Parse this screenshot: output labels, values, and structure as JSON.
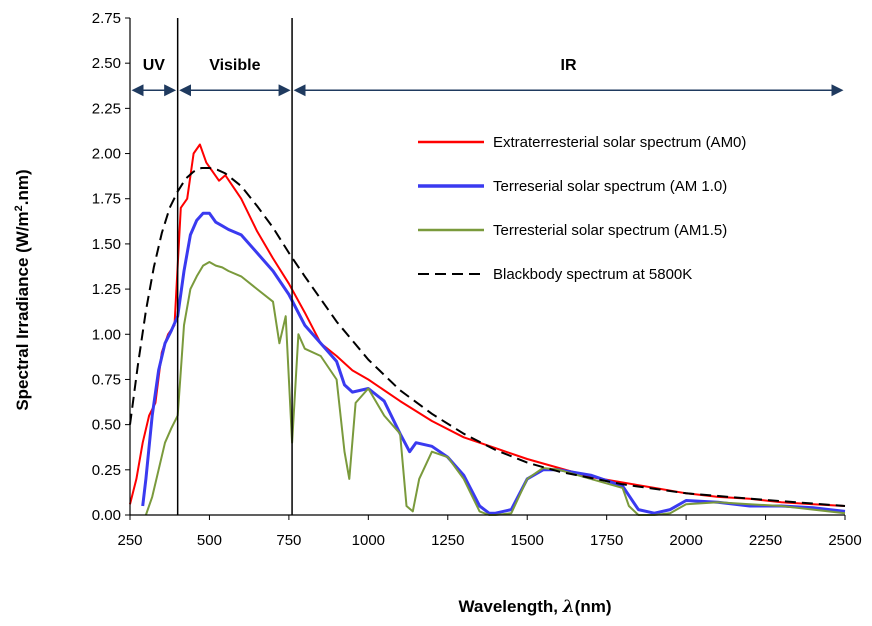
{
  "chart_data": {
    "type": "line",
    "title": "",
    "xlabel_prefix": "Wavelength, ",
    "xlabel_symbol": "λ",
    "xlabel_suffix": "(nm)",
    "ylabel_main": "Spectral Irradiance (W/m",
    "ylabel_sup": "2",
    "ylabel_end": ".nm)",
    "xlim": [
      250,
      2500
    ],
    "ylim": [
      0,
      2.75
    ],
    "xticks": [
      250,
      500,
      750,
      1000,
      1250,
      1500,
      1750,
      2000,
      2250,
      2500
    ],
    "yticks": [
      0.0,
      0.25,
      0.5,
      0.75,
      1.0,
      1.25,
      1.5,
      1.75,
      2.0,
      2.25,
      2.5,
      2.75
    ],
    "grid": false,
    "legend_position": "top-right",
    "regions": [
      {
        "label": "UV",
        "from": 250,
        "to": 400
      },
      {
        "label": "Visible",
        "from": 400,
        "to": 760
      },
      {
        "label": "IR",
        "from": 760,
        "to": 2500
      }
    ],
    "series": [
      {
        "name": "Extraterresterial solar spectrum (AM0)",
        "color": "#ff0000",
        "style": "solid",
        "x": [
          250,
          270,
          290,
          310,
          330,
          350,
          370,
          390,
          410,
          430,
          450,
          470,
          490,
          510,
          530,
          550,
          600,
          650,
          700,
          750,
          800,
          850,
          900,
          950,
          1000,
          1100,
          1200,
          1300,
          1400,
          1500,
          1600,
          1700,
          1800,
          1900,
          2000,
          2100,
          2200,
          2300,
          2400,
          2500
        ],
        "y": [
          0.06,
          0.2,
          0.4,
          0.55,
          0.62,
          0.9,
          1.0,
          1.05,
          1.7,
          1.75,
          2.0,
          2.05,
          1.95,
          1.9,
          1.85,
          1.88,
          1.75,
          1.57,
          1.42,
          1.28,
          1.12,
          0.95,
          0.88,
          0.8,
          0.75,
          0.63,
          0.52,
          0.43,
          0.37,
          0.31,
          0.26,
          0.21,
          0.18,
          0.15,
          0.12,
          0.1,
          0.09,
          0.07,
          0.06,
          0.05
        ]
      },
      {
        "name": "Terreserial solar spectrum (AM 1.0)",
        "color": "#3a3af0",
        "style": "solid",
        "x": [
          290,
          300,
          320,
          340,
          360,
          380,
          400,
          420,
          440,
          460,
          480,
          500,
          520,
          540,
          560,
          600,
          650,
          700,
          750,
          800,
          850,
          900,
          925,
          950,
          1000,
          1050,
          1100,
          1130,
          1150,
          1200,
          1250,
          1300,
          1350,
          1380,
          1400,
          1450,
          1500,
          1550,
          1600,
          1700,
          1800,
          1850,
          1900,
          1950,
          2000,
          2100,
          2200,
          2300,
          2400,
          2500
        ],
        "y": [
          0.05,
          0.2,
          0.55,
          0.8,
          0.95,
          1.02,
          1.1,
          1.35,
          1.55,
          1.63,
          1.67,
          1.67,
          1.62,
          1.6,
          1.58,
          1.55,
          1.45,
          1.35,
          1.22,
          1.05,
          0.95,
          0.85,
          0.72,
          0.68,
          0.7,
          0.63,
          0.45,
          0.35,
          0.4,
          0.38,
          0.32,
          0.22,
          0.05,
          0.01,
          0.01,
          0.03,
          0.2,
          0.25,
          0.25,
          0.22,
          0.16,
          0.03,
          0.01,
          0.03,
          0.08,
          0.07,
          0.05,
          0.05,
          0.04,
          0.02
        ]
      },
      {
        "name": "Terresterial solar  spectrum (AM1.5)",
        "color": "#7a9a3c",
        "style": "solid",
        "x": [
          300,
          320,
          340,
          360,
          380,
          400,
          420,
          440,
          460,
          480,
          500,
          520,
          540,
          560,
          600,
          650,
          700,
          720,
          740,
          760,
          780,
          800,
          850,
          900,
          925,
          940,
          960,
          1000,
          1050,
          1100,
          1120,
          1140,
          1160,
          1200,
          1250,
          1300,
          1350,
          1380,
          1400,
          1450,
          1500,
          1550,
          1600,
          1700,
          1800,
          1820,
          1850,
          1900,
          1950,
          2000,
          2100,
          2200,
          2300,
          2400,
          2500
        ],
        "y": [
          0.0,
          0.1,
          0.25,
          0.4,
          0.48,
          0.55,
          1.05,
          1.25,
          1.32,
          1.38,
          1.4,
          1.38,
          1.37,
          1.35,
          1.32,
          1.25,
          1.18,
          0.95,
          1.1,
          0.4,
          1.0,
          0.92,
          0.88,
          0.75,
          0.35,
          0.2,
          0.62,
          0.7,
          0.55,
          0.45,
          0.05,
          0.02,
          0.2,
          0.35,
          0.32,
          0.2,
          0.02,
          0.0,
          0.0,
          0.01,
          0.2,
          0.26,
          0.25,
          0.2,
          0.15,
          0.05,
          0.0,
          0.0,
          0.01,
          0.06,
          0.07,
          0.06,
          0.05,
          0.03,
          0.01
        ]
      },
      {
        "name": "Blackbody spectrum at 5800K",
        "color": "#000000",
        "style": "dashed",
        "x": [
          250,
          275,
          300,
          325,
          350,
          375,
          400,
          425,
          450,
          475,
          500,
          525,
          550,
          600,
          650,
          700,
          750,
          800,
          900,
          1000,
          1100,
          1200,
          1300,
          1400,
          1500,
          1600,
          1800,
          2000,
          2200,
          2500
        ],
        "y": [
          0.5,
          0.83,
          1.13,
          1.37,
          1.56,
          1.7,
          1.79,
          1.86,
          1.9,
          1.92,
          1.92,
          1.91,
          1.89,
          1.82,
          1.71,
          1.59,
          1.45,
          1.32,
          1.07,
          0.86,
          0.69,
          0.56,
          0.45,
          0.36,
          0.29,
          0.24,
          0.17,
          0.12,
          0.09,
          0.05
        ]
      }
    ]
  }
}
